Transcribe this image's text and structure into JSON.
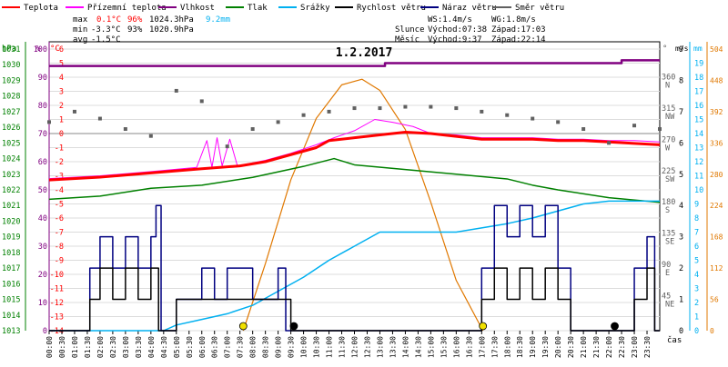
{
  "chart_data": {
    "type": "line",
    "title": "1.2.2017",
    "xlabel": "čas",
    "legend": {
      "placement": "top",
      "entries": [
        {
          "key": "teplota",
          "label": "Teplota",
          "color": "#ff0000"
        },
        {
          "key": "pristeplota",
          "label": "Přízemní teplota",
          "color": "#ff00ff"
        },
        {
          "key": "vlhkost",
          "label": "Vlhkost",
          "color": "#800080"
        },
        {
          "key": "tlak",
          "label": "Tlak",
          "color": "#008000"
        },
        {
          "key": "srazky",
          "label": "Srážky",
          "color": "#00b0f0"
        },
        {
          "key": "rychlost",
          "label": "Rychlost větru",
          "color": "#000000"
        },
        {
          "key": "naraz",
          "label": "Náraz větru",
          "color": "#000080"
        },
        {
          "key": "smer",
          "label": "Směr větru",
          "color": "#606060"
        }
      ]
    },
    "stats": {
      "max": {
        "label": "max",
        "temp": "0.1°C",
        "hum": "96%",
        "pres": "1024.3hPa",
        "rain": "9.2mm"
      },
      "min": {
        "label": "min",
        "temp": "-3.3°C",
        "hum": "93%",
        "pres": "1020.9hPa"
      },
      "avg": {
        "label": "avg",
        "temp": "-1.5°C"
      }
    },
    "info": {
      "ws": "WS:1.4m/s",
      "wg": "WG:1.8m/s",
      "sun": {
        "label": "Slunce",
        "rise": "Východ:07:38",
        "set": "Západ:17:03"
      },
      "moon": {
        "label": "Měsíc",
        "rise": "Východ:9:37",
        "set": "Západ:22:14"
      }
    },
    "axes": {
      "pressure": {
        "unit": "hPa",
        "min": 1013,
        "max": 1031,
        "ticks": [
          "1013",
          "1014",
          "1015",
          "1016",
          "1017",
          "1018",
          "1019",
          "1020",
          "1021",
          "1022",
          "1023",
          "1024",
          "1025",
          "1026",
          "1027",
          "1028",
          "1029",
          "1030",
          "1031"
        ]
      },
      "humidity": {
        "unit": "%",
        "min": 0,
        "max": 100,
        "ticks": [
          "0",
          "10",
          "20",
          "30",
          "40",
          "50",
          "60",
          "70",
          "80",
          "90",
          "100"
        ]
      },
      "temperature": {
        "unit": "°C",
        "min": -14,
        "max": 6,
        "ticks": [
          "6",
          "5",
          "4",
          "3",
          "2",
          "1",
          "0",
          "-1",
          "-2",
          "-3",
          "-4",
          "-5",
          "-6",
          "-7",
          "-8",
          "-9",
          "-10",
          "-11",
          "-12",
          "-13",
          "-14"
        ]
      },
      "direction": {
        "unit": "°",
        "ticks": [
          {
            "deg": "360",
            "dir": "N"
          },
          {
            "deg": "315",
            "dir": "NW"
          },
          {
            "deg": "270",
            "dir": "W"
          },
          {
            "deg": "225",
            "dir": "SW"
          },
          {
            "deg": "180",
            "dir": "S"
          },
          {
            "deg": "135",
            "dir": "SE"
          },
          {
            "deg": "90",
            "dir": "E"
          },
          {
            "deg": "45",
            "dir": "NE"
          }
        ]
      },
      "wind": {
        "unit": "m/s",
        "min": 0,
        "max": 9,
        "ticks": [
          "0",
          "1",
          "2",
          "3",
          "4",
          "5",
          "6",
          "7",
          "8",
          "9"
        ]
      },
      "rain": {
        "unit": "mm",
        "min": 0,
        "max": 20,
        "ticks": [
          "0",
          "1",
          "2",
          "3",
          "4",
          "5",
          "6",
          "7",
          "8",
          "9",
          "10",
          "11",
          "12",
          "13",
          "14",
          "15",
          "16",
          "17",
          "18",
          "19"
        ]
      },
      "solar": {
        "min": 0,
        "max": 504,
        "ticks": [
          "0",
          "56",
          "112",
          "168",
          "224",
          "280",
          "336",
          "392",
          "448",
          "504"
        ]
      },
      "x_ticks": [
        "00:00",
        "00:30",
        "01:00",
        "01:30",
        "02:00",
        "02:30",
        "03:00",
        "03:30",
        "04:00",
        "04:30",
        "05:00",
        "05:30",
        "06:00",
        "06:30",
        "07:00",
        "07:30",
        "08:00",
        "08:30",
        "09:00",
        "09:30",
        "10:00",
        "10:30",
        "11:00",
        "11:30",
        "12:00",
        "12:30",
        "13:00",
        "13:30",
        "14:00",
        "14:30",
        "15:00",
        "15:30",
        "16:00",
        "16:30",
        "17:00",
        "17:30",
        "18:00",
        "18:30",
        "19:00",
        "19:30",
        "20:00",
        "20:30",
        "21:00",
        "21:30",
        "22:00",
        "22:30",
        "23:00",
        "23:30"
      ]
    },
    "series": {
      "teplota": {
        "unit": "°C",
        "points": [
          [
            0,
            -3.3
          ],
          [
            2,
            -3.1
          ],
          [
            4,
            -2.8
          ],
          [
            6,
            -2.5
          ],
          [
            7.5,
            -2.3
          ],
          [
            8.5,
            -2.0
          ],
          [
            9.5,
            -1.5
          ],
          [
            10.5,
            -1.0
          ],
          [
            11,
            -0.5
          ],
          [
            12,
            -0.3
          ],
          [
            13,
            -0.1
          ],
          [
            14,
            0.1
          ],
          [
            15,
            0.0
          ],
          [
            16,
            -0.2
          ],
          [
            17,
            -0.4
          ],
          [
            18,
            -0.4
          ],
          [
            19,
            -0.4
          ],
          [
            20,
            -0.5
          ],
          [
            21,
            -0.5
          ],
          [
            22,
            -0.6
          ],
          [
            23,
            -0.7
          ],
          [
            24,
            -0.8
          ]
        ]
      },
      "pristeplota": {
        "unit": "°C",
        "points": [
          [
            0,
            -3.2
          ],
          [
            2,
            -3.0
          ],
          [
            4,
            -2.7
          ],
          [
            5.8,
            -2.4
          ],
          [
            6.2,
            -0.5
          ],
          [
            6.4,
            -2.4
          ],
          [
            6.6,
            -0.3
          ],
          [
            6.8,
            -2.3
          ],
          [
            7.1,
            -0.4
          ],
          [
            7.4,
            -2.3
          ],
          [
            8.5,
            -1.9
          ],
          [
            9.5,
            -1.4
          ],
          [
            10.5,
            -0.8
          ],
          [
            11.2,
            -0.3
          ],
          [
            12,
            0.2
          ],
          [
            12.8,
            1.0
          ],
          [
            13.5,
            0.8
          ],
          [
            14.3,
            0.5
          ],
          [
            15,
            0.0
          ],
          [
            16,
            -0.1
          ],
          [
            17,
            -0.3
          ],
          [
            18,
            -0.3
          ],
          [
            19,
            -0.3
          ],
          [
            20,
            -0.4
          ],
          [
            21,
            -0.4
          ],
          [
            22,
            -0.5
          ],
          [
            23,
            -0.5
          ],
          [
            24,
            -0.6
          ]
        ]
      },
      "vlhkost": {
        "unit": "%",
        "points": [
          [
            0,
            94
          ],
          [
            13,
            94
          ],
          [
            13.2,
            95
          ],
          [
            22.3,
            95
          ],
          [
            22.5,
            96
          ],
          [
            24,
            96
          ]
        ]
      },
      "tlak": {
        "unit": "hPa",
        "points": [
          [
            0,
            1021.4
          ],
          [
            2,
            1021.6
          ],
          [
            4,
            1022.1
          ],
          [
            6,
            1022.3
          ],
          [
            8,
            1022.8
          ],
          [
            10,
            1023.5
          ],
          [
            11.2,
            1024.0
          ],
          [
            12,
            1023.6
          ],
          [
            14,
            1023.3
          ],
          [
            16,
            1023.0
          ],
          [
            18,
            1022.7
          ],
          [
            19,
            1022.3
          ],
          [
            20,
            1022.0
          ],
          [
            22,
            1021.5
          ],
          [
            24,
            1021.2
          ]
        ]
      },
      "srazky": {
        "unit": "mm",
        "points": [
          [
            0,
            0
          ],
          [
            4.5,
            0
          ],
          [
            5,
            0.4
          ],
          [
            6,
            0.8
          ],
          [
            7,
            1.2
          ],
          [
            8,
            1.8
          ],
          [
            9,
            2.8
          ],
          [
            10,
            3.8
          ],
          [
            11,
            5.0
          ],
          [
            12,
            6.0
          ],
          [
            13,
            7.0
          ],
          [
            14,
            7.0
          ],
          [
            16,
            7.0
          ],
          [
            17,
            7.3
          ],
          [
            18,
            7.6
          ],
          [
            19,
            8.0
          ],
          [
            20,
            8.5
          ],
          [
            21,
            9.0
          ],
          [
            22,
            9.2
          ],
          [
            24,
            9.2
          ]
        ]
      },
      "rychlost": {
        "unit": "m/s",
        "points": [
          [
            0,
            0
          ],
          [
            1.4,
            0
          ],
          [
            1.6,
            1
          ],
          [
            2,
            2
          ],
          [
            2.5,
            1
          ],
          [
            3,
            2
          ],
          [
            3.5,
            1
          ],
          [
            4,
            2
          ],
          [
            4.3,
            0
          ],
          [
            5,
            1
          ],
          [
            6,
            1
          ],
          [
            7,
            1
          ],
          [
            8,
            1
          ],
          [
            9.2,
            1
          ],
          [
            9.5,
            0
          ],
          [
            13,
            0
          ],
          [
            16.5,
            0
          ],
          [
            17,
            1
          ],
          [
            17.5,
            2
          ],
          [
            18,
            1
          ],
          [
            18.5,
            2
          ],
          [
            19,
            1
          ],
          [
            19.5,
            2
          ],
          [
            20,
            1
          ],
          [
            20.5,
            0
          ],
          [
            23,
            1
          ],
          [
            23.5,
            2
          ],
          [
            23.8,
            0
          ],
          [
            24,
            0
          ]
        ]
      },
      "naraz": {
        "unit": "m/s",
        "points": [
          [
            0,
            0
          ],
          [
            1.4,
            0
          ],
          [
            1.6,
            2
          ],
          [
            2,
            3
          ],
          [
            2.5,
            2
          ],
          [
            3,
            3
          ],
          [
            3.5,
            2
          ],
          [
            4,
            3
          ],
          [
            4.2,
            4
          ],
          [
            4.4,
            0
          ],
          [
            5,
            1
          ],
          [
            6,
            2
          ],
          [
            6.5,
            1
          ],
          [
            7,
            2
          ],
          [
            8,
            1
          ],
          [
            9,
            2
          ],
          [
            9.3,
            0
          ],
          [
            16.5,
            0
          ],
          [
            17,
            2
          ],
          [
            17.5,
            4
          ],
          [
            18,
            3
          ],
          [
            18.5,
            4
          ],
          [
            19,
            3
          ],
          [
            19.5,
            4
          ],
          [
            20,
            2
          ],
          [
            20.5,
            0
          ],
          [
            23,
            2
          ],
          [
            23.5,
            3
          ],
          [
            23.8,
            0
          ],
          [
            24,
            0
          ]
        ]
      },
      "smer": {
        "unit": "°",
        "points": [
          [
            0,
            300
          ],
          [
            1,
            315
          ],
          [
            2,
            305
          ],
          [
            3,
            290
          ],
          [
            4,
            280
          ],
          [
            5,
            345
          ],
          [
            6,
            330
          ],
          [
            7,
            265
          ],
          [
            8,
            290
          ],
          [
            9,
            300
          ],
          [
            10,
            310
          ],
          [
            11,
            315
          ],
          [
            12,
            320
          ],
          [
            13,
            320
          ],
          [
            14,
            322
          ],
          [
            15,
            322
          ],
          [
            16,
            320
          ],
          [
            17,
            315
          ],
          [
            18,
            310
          ],
          [
            19,
            305
          ],
          [
            20,
            300
          ],
          [
            21,
            290
          ],
          [
            22,
            270
          ],
          [
            23,
            295
          ],
          [
            24,
            290
          ]
        ]
      },
      "solar": {
        "unit": "W/m2",
        "points": [
          [
            7.63,
            0
          ],
          [
            8.5,
            120
          ],
          [
            9.5,
            270
          ],
          [
            10.5,
            380
          ],
          [
            11.5,
            440
          ],
          [
            12.3,
            450
          ],
          [
            13,
            430
          ],
          [
            14,
            360
          ],
          [
            15,
            230
          ],
          [
            16,
            90
          ],
          [
            17.05,
            0
          ]
        ]
      }
    },
    "markers": [
      {
        "type": "sunrise",
        "time": 7.63
      },
      {
        "type": "sunset",
        "time": 17.05
      },
      {
        "type": "moonrise",
        "time": 9.62
      },
      {
        "type": "moonset",
        "time": 22.23
      }
    ]
  }
}
